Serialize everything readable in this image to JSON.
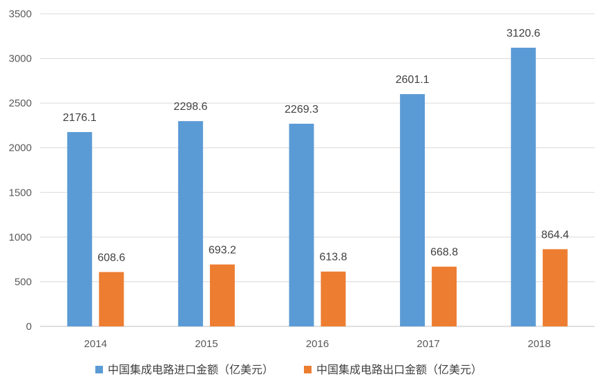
{
  "chart_data": {
    "type": "bar",
    "categories": [
      "2014",
      "2015",
      "2016",
      "2017",
      "2018"
    ],
    "series": [
      {
        "name": "中国集成电路进口金额（亿美元）",
        "color": "#5B9BD5",
        "values": [
          2176.1,
          2298.6,
          2269.3,
          2601.1,
          3120.6
        ],
        "labels": [
          "2176.1",
          "2298.6",
          "2269.3",
          "2601.1",
          "3120.6"
        ]
      },
      {
        "name": "中国集成电路出口金额（亿美元）",
        "color": "#ED7D31",
        "values": [
          608.6,
          693.2,
          613.8,
          668.8,
          864.4
        ],
        "labels": [
          "608.6",
          "693.2",
          "613.8",
          "668.8",
          "864.4"
        ]
      }
    ],
    "ylim": [
      0,
      3500
    ],
    "yticks": [
      "0",
      "500",
      "1000",
      "1500",
      "2000",
      "2500",
      "3000",
      "3500"
    ],
    "grid": true,
    "legend_position": "bottom",
    "colors": {
      "grid": "#D9D9D9",
      "axis": "#BFBFBF"
    }
  }
}
